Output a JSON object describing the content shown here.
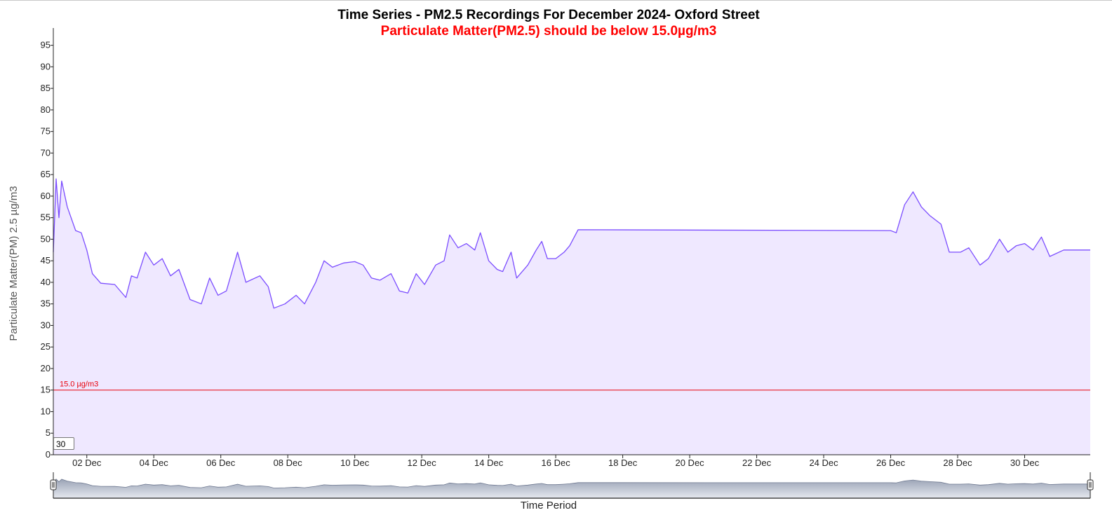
{
  "chart_data": {
    "type": "area",
    "title": "Time Series - PM2.5 Recordings For December 2024- Oxford Street",
    "subtitle": "Particulate Matter(PM2.5) should be below 15.0µg/m3",
    "ylabel": "Particulate Matter(PM) 2.5 µg/m3",
    "xlabel": "Time Period",
    "ylim": [
      0,
      99
    ],
    "xlim": [
      "2024-12-01 00:00",
      "2024-12-31 23:00"
    ],
    "y_ticks": [
      "0",
      "5",
      "10",
      "15",
      "20",
      "25",
      "30",
      "35",
      "40",
      "45",
      "50",
      "55",
      "60",
      "65",
      "70",
      "75",
      "80",
      "85",
      "90",
      "95"
    ],
    "x_ticks": [
      {
        "x": "2024-12-02",
        "label": "02 Dec"
      },
      {
        "x": "2024-12-04",
        "label": "04 Dec"
      },
      {
        "x": "2024-12-06",
        "label": "06 Dec"
      },
      {
        "x": "2024-12-08",
        "label": "08 Dec"
      },
      {
        "x": "2024-12-10",
        "label": "10 Dec"
      },
      {
        "x": "2024-12-12",
        "label": "12 Dec"
      },
      {
        "x": "2024-12-14",
        "label": "14 Dec"
      },
      {
        "x": "2024-12-16",
        "label": "16 Dec"
      },
      {
        "x": "2024-12-18",
        "label": "18 Dec"
      },
      {
        "x": "2024-12-20",
        "label": "20 Dec"
      },
      {
        "x": "2024-12-22",
        "label": "22 Dec"
      },
      {
        "x": "2024-12-24",
        "label": "24 Dec"
      },
      {
        "x": "2024-12-26",
        "label": "26 Dec"
      },
      {
        "x": "2024-12-28",
        "label": "28 Dec"
      },
      {
        "x": "2024-12-30",
        "label": "30 Dec"
      }
    ],
    "threshold": {
      "value": 15.0,
      "label": "15.0 µg/m3",
      "color": "#e8000b"
    },
    "line_color": "#7b4dff",
    "fill_color": "#efe8ff",
    "grid": false,
    "legend": "none",
    "series": [
      {
        "points": [
          [
            "2024-12-01 00:00",
            47.0
          ],
          [
            "2024-12-01 02:00",
            64.0
          ],
          [
            "2024-12-01 04:00",
            55.0
          ],
          [
            "2024-12-01 06:00",
            63.5
          ],
          [
            "2024-12-01 10:00",
            57.5
          ],
          [
            "2024-12-01 16:00",
            52.0
          ],
          [
            "2024-12-01 20:00",
            51.5
          ],
          [
            "2024-12-02 00:00",
            47.5
          ],
          [
            "2024-12-02 04:00",
            42.0
          ],
          [
            "2024-12-02 10:00",
            39.8
          ],
          [
            "2024-12-02 20:00",
            39.5
          ],
          [
            "2024-12-03 04:00",
            36.5
          ],
          [
            "2024-12-03 08:00",
            41.5
          ],
          [
            "2024-12-03 12:00",
            41.0
          ],
          [
            "2024-12-03 18:00",
            47.0
          ],
          [
            "2024-12-04 00:00",
            44.0
          ],
          [
            "2024-12-04 06:00",
            45.5
          ],
          [
            "2024-12-04 12:00",
            41.5
          ],
          [
            "2024-12-04 18:00",
            43.0
          ],
          [
            "2024-12-05 02:00",
            36.0
          ],
          [
            "2024-12-05 10:00",
            35.0
          ],
          [
            "2024-12-05 16:00",
            41.0
          ],
          [
            "2024-12-05 22:00",
            37.0
          ],
          [
            "2024-12-06 04:00",
            38.0
          ],
          [
            "2024-12-06 12:00",
            47.0
          ],
          [
            "2024-12-06 18:00",
            40.0
          ],
          [
            "2024-12-07 04:00",
            41.5
          ],
          [
            "2024-12-07 10:00",
            39.0
          ],
          [
            "2024-12-07 14:00",
            34.0
          ],
          [
            "2024-12-07 22:00",
            35.0
          ],
          [
            "2024-12-08 06:00",
            37.0
          ],
          [
            "2024-12-08 12:00",
            35.0
          ],
          [
            "2024-12-08 20:00",
            40.0
          ],
          [
            "2024-12-09 02:00",
            45.0
          ],
          [
            "2024-12-09 08:00",
            43.5
          ],
          [
            "2024-12-09 16:00",
            44.5
          ],
          [
            "2024-12-10 00:00",
            44.8
          ],
          [
            "2024-12-10 06:00",
            44.0
          ],
          [
            "2024-12-10 12:00",
            41.0
          ],
          [
            "2024-12-10 18:00",
            40.5
          ],
          [
            "2024-12-11 02:00",
            42.0
          ],
          [
            "2024-12-11 08:00",
            38.0
          ],
          [
            "2024-12-11 14:00",
            37.5
          ],
          [
            "2024-12-11 20:00",
            42.0
          ],
          [
            "2024-12-12 02:00",
            39.5
          ],
          [
            "2024-12-12 10:00",
            44.0
          ],
          [
            "2024-12-12 16:00",
            45.0
          ],
          [
            "2024-12-12 20:00",
            51.0
          ],
          [
            "2024-12-13 02:00",
            48.0
          ],
          [
            "2024-12-13 08:00",
            49.0
          ],
          [
            "2024-12-13 14:00",
            47.5
          ],
          [
            "2024-12-13 18:00",
            51.5
          ],
          [
            "2024-12-14 00:00",
            45.0
          ],
          [
            "2024-12-14 06:00",
            43.0
          ],
          [
            "2024-12-14 10:00",
            42.5
          ],
          [
            "2024-12-14 16:00",
            47.0
          ],
          [
            "2024-12-14 20:00",
            41.0
          ],
          [
            "2024-12-15 04:00",
            44.0
          ],
          [
            "2024-12-15 10:00",
            47.5
          ],
          [
            "2024-12-15 14:00",
            49.5
          ],
          [
            "2024-12-15 18:00",
            45.5
          ],
          [
            "2024-12-16 00:00",
            45.5
          ],
          [
            "2024-12-16 06:00",
            47.0
          ],
          [
            "2024-12-16 10:00",
            48.5
          ],
          [
            "2024-12-16 16:00",
            52.2
          ],
          [
            "2024-12-26 00:00",
            52.0
          ],
          [
            "2024-12-26 04:00",
            51.5
          ],
          [
            "2024-12-26 10:00",
            58.0
          ],
          [
            "2024-12-26 16:00",
            61.0
          ],
          [
            "2024-12-26 22:00",
            57.5
          ],
          [
            "2024-12-27 04:00",
            55.5
          ],
          [
            "2024-12-27 12:00",
            53.5
          ],
          [
            "2024-12-27 18:00",
            47.0
          ],
          [
            "2024-12-28 02:00",
            47.0
          ],
          [
            "2024-12-28 08:00",
            48.0
          ],
          [
            "2024-12-28 16:00",
            44.0
          ],
          [
            "2024-12-28 22:00",
            45.5
          ],
          [
            "2024-12-29 06:00",
            50.0
          ],
          [
            "2024-12-29 12:00",
            47.0
          ],
          [
            "2024-12-29 18:00",
            48.5
          ],
          [
            "2024-12-30 00:00",
            49.0
          ],
          [
            "2024-12-30 06:00",
            47.5
          ],
          [
            "2024-12-30 12:00",
            50.5
          ],
          [
            "2024-12-30 18:00",
            46.0
          ],
          [
            "2024-12-31 04:00",
            47.5
          ],
          [
            "2024-12-31 12:00",
            47.5
          ]
        ]
      }
    ]
  },
  "controls": {
    "window_input_value": "30"
  }
}
